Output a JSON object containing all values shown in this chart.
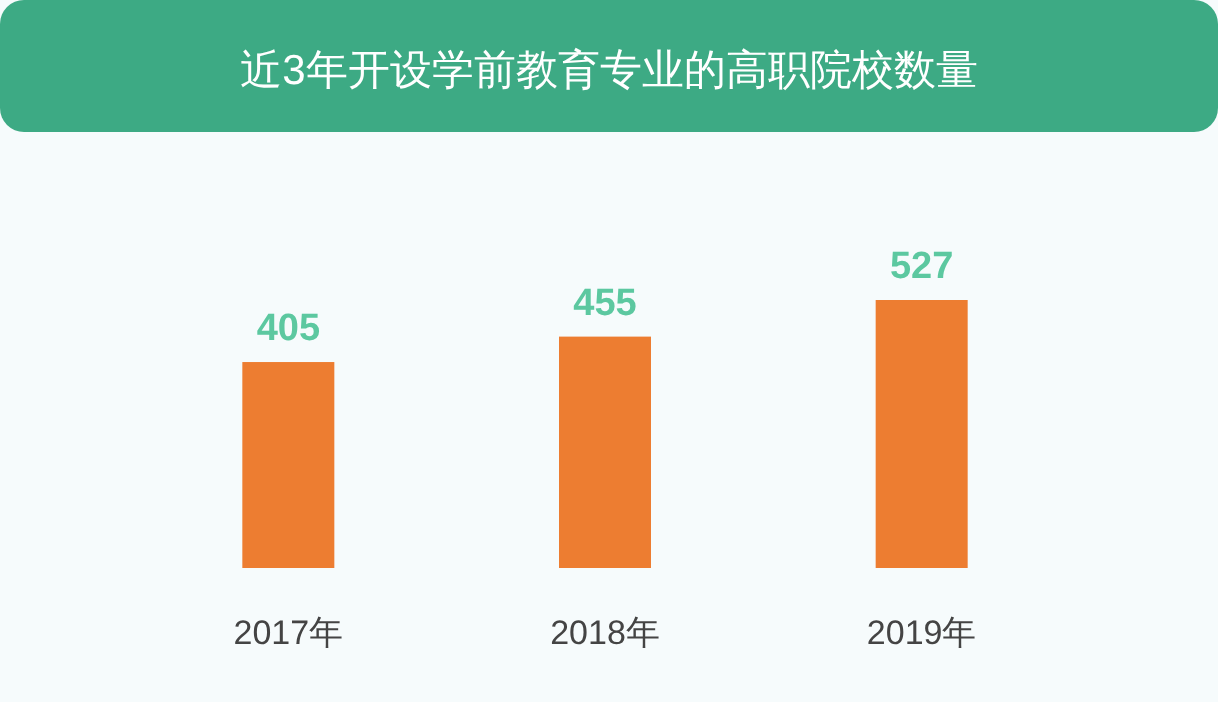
{
  "chart_data": {
    "type": "bar",
    "title": "近3年开设学前教育专业的高职院校数量",
    "categories": [
      "2017年",
      "2018年",
      "2019年"
    ],
    "values": [
      405,
      455,
      527
    ],
    "color": "#ed7d31",
    "data_labels": true
  }
}
